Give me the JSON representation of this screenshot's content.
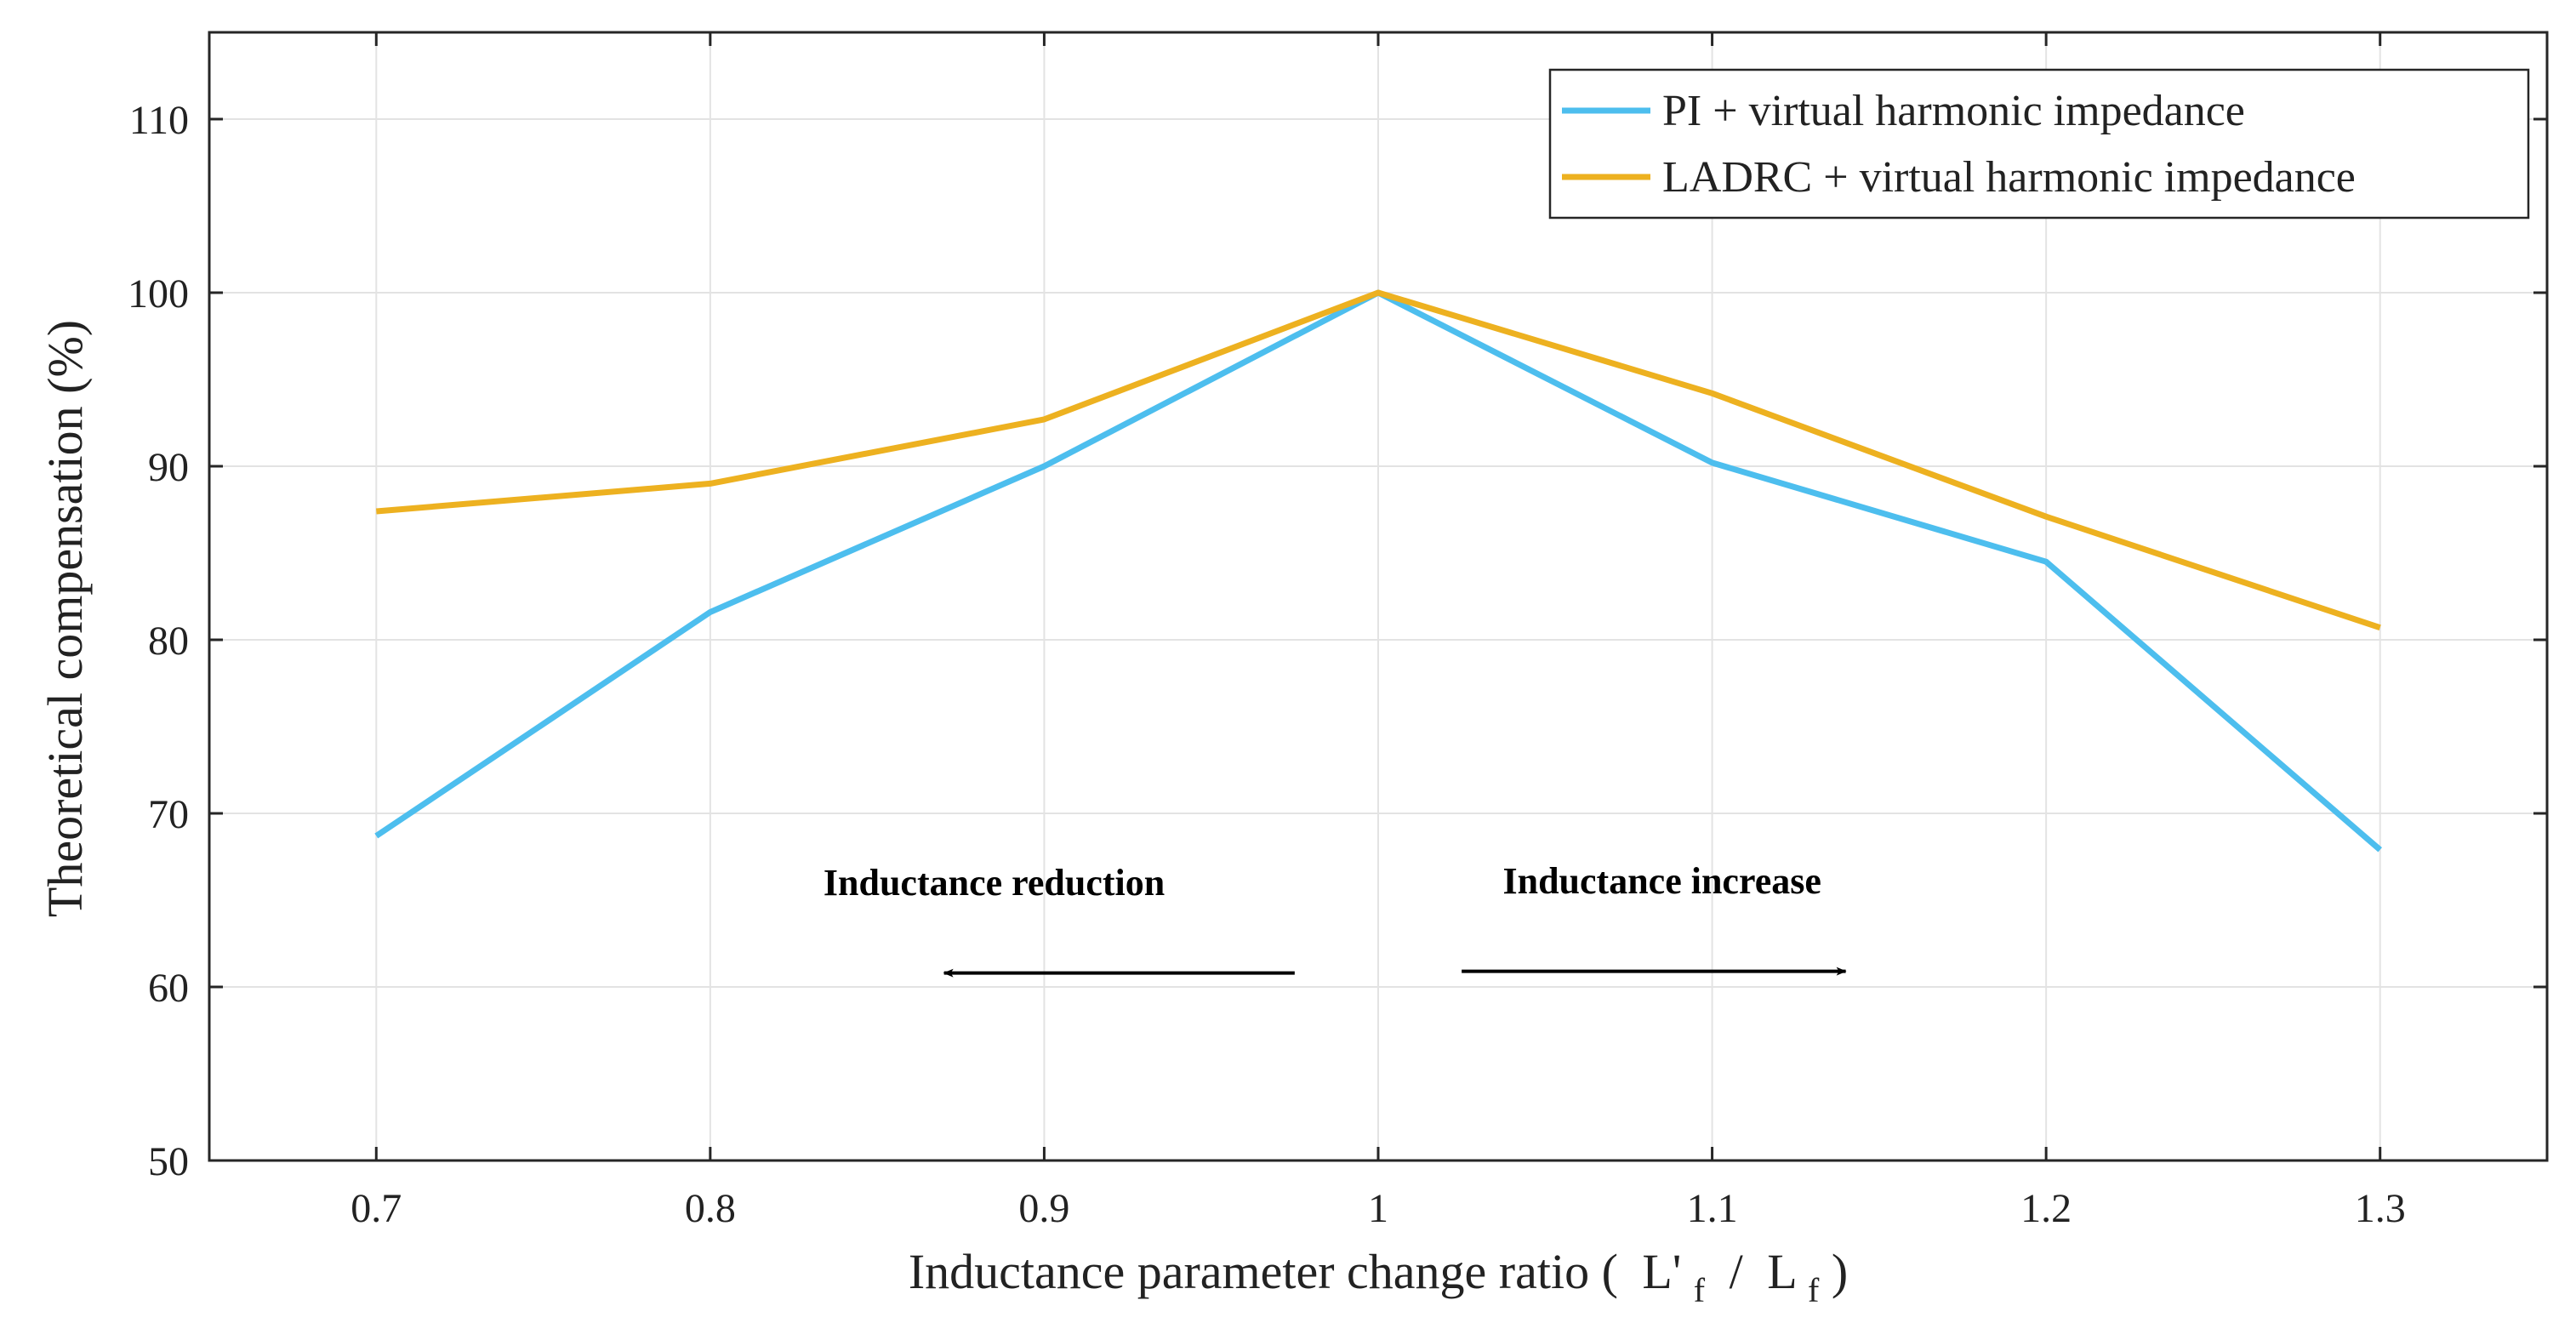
{
  "chart_data": {
    "type": "line",
    "title": "",
    "xlabel": "Inductance parameter change ratio (",
    "xlabel_math": {
      "num_base": "L'",
      "num_sub": "f",
      "slash": "/",
      "den_base": "L",
      "den_sub": "f",
      "close": ")"
    },
    "ylabel": "Theoretical compensation  (%)",
    "x": [
      0.7,
      0.8,
      0.9,
      1.0,
      1.1,
      1.2,
      1.3
    ],
    "xticks": [
      0.7,
      0.8,
      0.9,
      1.0,
      1.1,
      1.2,
      1.3
    ],
    "xtick_labels": [
      "0.7",
      "0.8",
      "0.9",
      "1",
      "1.1",
      "1.2",
      "1.3"
    ],
    "yticks": [
      50,
      60,
      70,
      80,
      90,
      100,
      110
    ],
    "ytick_labels": [
      "50",
      "60",
      "70",
      "80",
      "90",
      "100",
      "110"
    ],
    "xlim": [
      0.65,
      1.35
    ],
    "ylim": [
      50,
      115
    ],
    "grid": true,
    "legend_position": "top-right",
    "series": [
      {
        "name": "PI + virtual harmonic impedance",
        "color": "#4DBEEE",
        "values": [
          68.7,
          81.6,
          90.0,
          100.0,
          90.2,
          84.5,
          67.9
        ]
      },
      {
        "name": "LADRC + virtual harmonic impedance",
        "color": "#EDB120",
        "values": [
          87.4,
          89.0,
          92.7,
          100.0,
          94.2,
          87.1,
          80.7
        ]
      }
    ],
    "annotations": [
      {
        "text": "Inductance reduction",
        "label_x": 0.885,
        "label_y": 65.3,
        "arrow_from": [
          0.975,
          60.8
        ],
        "arrow_to": [
          0.87,
          60.8
        ]
      },
      {
        "text": "Inductance increase",
        "label_x": 1.085,
        "label_y": 65.4,
        "arrow_from": [
          1.025,
          60.9
        ],
        "arrow_to": [
          1.14,
          60.9
        ]
      }
    ]
  }
}
